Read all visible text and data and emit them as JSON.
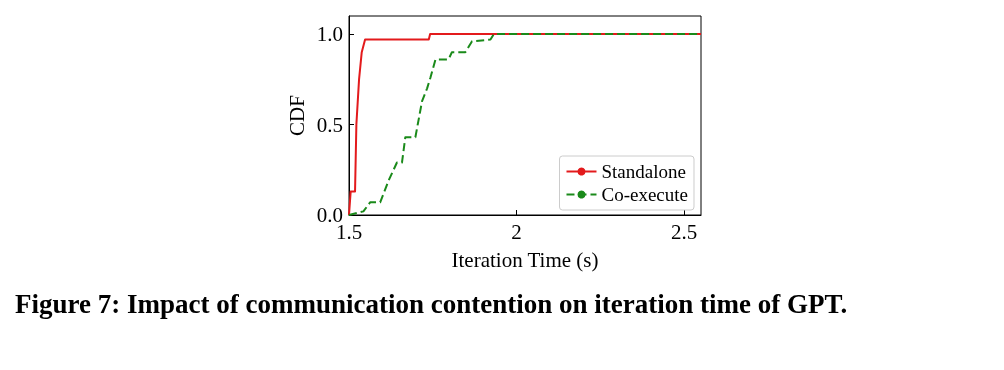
{
  "chart_data": {
    "type": "line",
    "title": "Figure 7: Impact of communication contention on iteration time of GPT.",
    "xlabel": "Iteration Time (s)",
    "ylabel": "CDF",
    "xlim": [
      1.5,
      2.55
    ],
    "xticks": [
      1.5,
      2,
      2.5
    ],
    "ylim": [
      0,
      1.1
    ],
    "yticks": [
      {
        "value": 0,
        "label": "0.0"
      },
      {
        "value": 0.5,
        "label": "0.5"
      },
      {
        "value": 1,
        "label": "1.0"
      }
    ],
    "grid": false,
    "legend": "bottom right",
    "marker": "none",
    "series": [
      {
        "name": "Standalone",
        "color": "#e31a1c",
        "line_style": "solid",
        "x": [
          1.5,
          1.505,
          1.518,
          1.522,
          1.53,
          1.538,
          1.548,
          1.738,
          1.742,
          2.55
        ],
        "values": [
          0,
          0.13,
          0.13,
          0.5,
          0.75,
          0.9,
          0.97,
          0.97,
          1.0,
          1.0
        ]
      },
      {
        "name": "Co-execute",
        "color": "#1a8a1a",
        "line_style": "dashed",
        "x": [
          1.5,
          1.543,
          1.563,
          1.593,
          1.618,
          1.643,
          1.658,
          1.668,
          1.698,
          1.718,
          1.733,
          1.743,
          1.758,
          1.797,
          1.807,
          1.847,
          1.867,
          1.922,
          1.932,
          2.55
        ],
        "values": [
          0,
          0.02,
          0.07,
          0.07,
          0.19,
          0.29,
          0.29,
          0.43,
          0.43,
          0.63,
          0.7,
          0.76,
          0.86,
          0.86,
          0.9,
          0.9,
          0.96,
          0.97,
          1.0,
          1.0
        ]
      }
    ]
  }
}
